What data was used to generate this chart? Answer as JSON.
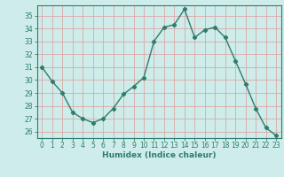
{
  "x": [
    0,
    1,
    2,
    3,
    4,
    5,
    6,
    7,
    8,
    9,
    10,
    11,
    12,
    13,
    14,
    15,
    16,
    17,
    18,
    19,
    20,
    21,
    22,
    23
  ],
  "y": [
    31,
    29.9,
    29,
    27.5,
    27,
    26.7,
    27,
    27.8,
    28.9,
    29.5,
    30.2,
    33,
    34.1,
    34.3,
    35.5,
    33.3,
    33.9,
    34.1,
    33.3,
    31.5,
    29.7,
    27.8,
    26.3,
    25.7
  ],
  "line_color": "#2e7d6e",
  "marker": "D",
  "marker_size": 2.2,
  "bg_color": "#cdecea",
  "grid_color": "#dba8a8",
  "xlabel": "Humidex (Indice chaleur)",
  "ylabel_ticks": [
    26,
    27,
    28,
    29,
    30,
    31,
    32,
    33,
    34,
    35
  ],
  "xlim": [
    -0.5,
    23.5
  ],
  "ylim": [
    25.5,
    35.8
  ],
  "tick_color": "#2e7d6e",
  "xlabel_color": "#2e7d6e",
  "tick_fontsize": 5.5,
  "xlabel_fontsize": 6.5,
  "linewidth": 1.0
}
